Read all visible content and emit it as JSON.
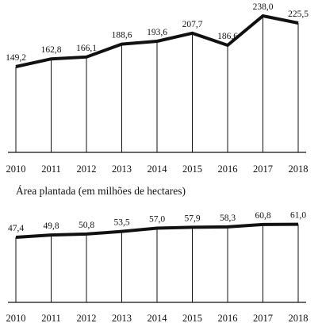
{
  "chart_data": [
    {
      "type": "line",
      "title": "",
      "title_fragment": "",
      "x": [
        "2010",
        "2011",
        "2012",
        "2013",
        "2014",
        "2015",
        "2016",
        "2017",
        "2018"
      ],
      "values": [
        149.2,
        162.8,
        166.1,
        188.6,
        193.6,
        207.7,
        186.6,
        238.0,
        225.5
      ],
      "value_labels": [
        "149,2",
        "162,8",
        "166,1",
        "188,6",
        "193,6",
        "207,7",
        "186,6",
        "238,0",
        "225,5"
      ],
      "ylim": [
        0,
        250
      ],
      "xlabel": "",
      "ylabel": "",
      "grid": "vertical lines at each year"
    },
    {
      "type": "line",
      "title": "Área plantada (em milhões de hectares)",
      "x": [
        "2010",
        "2011",
        "2012",
        "2013",
        "2014",
        "2015",
        "2016",
        "2017",
        "2018"
      ],
      "values": [
        47.4,
        49.8,
        50.8,
        53.5,
        57.0,
        57.9,
        58.3,
        60.8,
        61.0
      ],
      "value_labels": [
        "47,4",
        "49,8",
        "50,8",
        "53,5",
        "57,0",
        "57,9",
        "58,3",
        "60,8",
        "61,0"
      ],
      "ylim": [
        0,
        70
      ],
      "xlabel": "",
      "ylabel": "",
      "grid": "vertical lines at each year"
    }
  ],
  "colors": {
    "line": "#111111",
    "axis": "#111111",
    "background": "#ffffff"
  }
}
